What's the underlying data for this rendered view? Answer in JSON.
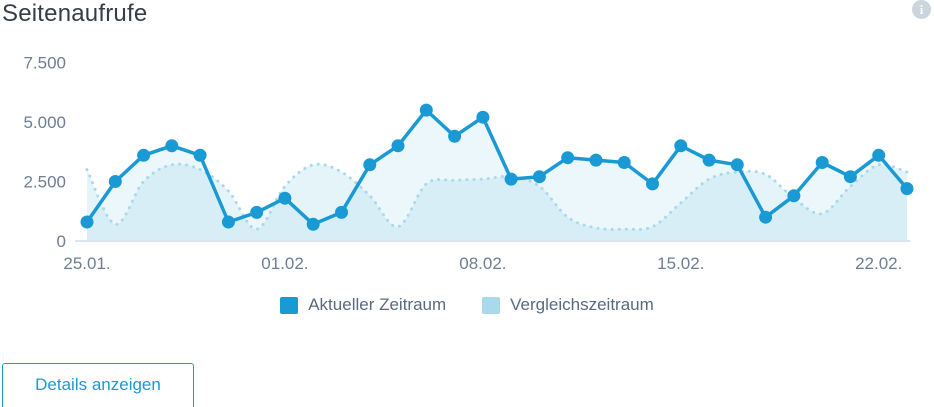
{
  "header": {
    "title": "Seitenaufrufe",
    "info_icon_glyph": "i"
  },
  "colors": {
    "accent_blue": "#1a9ad5",
    "comparison_blue": "#a9d9ec",
    "current_fill": "rgba(169,217,236,0.22)",
    "comparison_fill": "rgba(169,217,236,0.30)",
    "axis_text": "#6e7e93",
    "baseline": "#dce4ec",
    "title_text": "#363d47",
    "legend_text": "#5a6a7e",
    "info_icon_bg": "#ccd5de"
  },
  "chart_data": {
    "type": "line",
    "title": "Seitenaufrufe",
    "xlabel": "",
    "ylabel": "",
    "ylim": [
      0,
      7500
    ],
    "grid": false,
    "legend_position": "bottom",
    "categories": [
      "25.01.",
      "26.01.",
      "27.01.",
      "28.01.",
      "29.01.",
      "30.01.",
      "31.01.",
      "01.02.",
      "02.02.",
      "03.02.",
      "04.02.",
      "05.02.",
      "06.02.",
      "07.02.",
      "08.02.",
      "09.02.",
      "10.02.",
      "11.02.",
      "12.02.",
      "13.02.",
      "14.02.",
      "15.02.",
      "16.02.",
      "17.02.",
      "18.02.",
      "19.02.",
      "20.02.",
      "21.02.",
      "22.02.",
      "23.02."
    ],
    "series": [
      {
        "name": "Aktueller Zeitraum",
        "style": "solid",
        "color": "#1a9ad5",
        "values": [
          800,
          2500,
          3600,
          4000,
          3600,
          800,
          1200,
          1800,
          700,
          1200,
          3200,
          4000,
          5500,
          4400,
          5200,
          2600,
          2700,
          3500,
          3400,
          3300,
          2400,
          4000,
          3400,
          3200,
          1000,
          1900,
          3300,
          2700,
          3600,
          2200
        ]
      },
      {
        "name": "Vergleichszeitraum",
        "style": "dotted",
        "color": "#a9d9ec",
        "values": [
          3000,
          700,
          2500,
          3200,
          3000,
          2100,
          500,
          2300,
          3200,
          2900,
          1900,
          600,
          2400,
          2550,
          2600,
          2700,
          2300,
          1000,
          550,
          500,
          600,
          1600,
          2600,
          2900,
          2800,
          1800,
          1150,
          2300,
          3200,
          2900
        ]
      }
    ],
    "y_ticks": [
      {
        "label": "0",
        "value": 0
      },
      {
        "label": "2.500",
        "value": 2500
      },
      {
        "label": "5.000",
        "value": 5000
      },
      {
        "label": "7.500",
        "value": 7500
      }
    ],
    "x_ticks": [
      {
        "label": "25.01.",
        "index": 0
      },
      {
        "label": "01.02.",
        "index": 7
      },
      {
        "label": "08.02.",
        "index": 14
      },
      {
        "label": "15.02.",
        "index": 21
      },
      {
        "label": "22.02.",
        "index": 28
      }
    ]
  },
  "legend": {
    "items": [
      {
        "label": "Aktueller Zeitraum",
        "color": "#1a9ad5"
      },
      {
        "label": "Vergleichszeitraum",
        "color": "#a9d9ec"
      }
    ]
  },
  "footer": {
    "details_button_label": "Details anzeigen"
  }
}
